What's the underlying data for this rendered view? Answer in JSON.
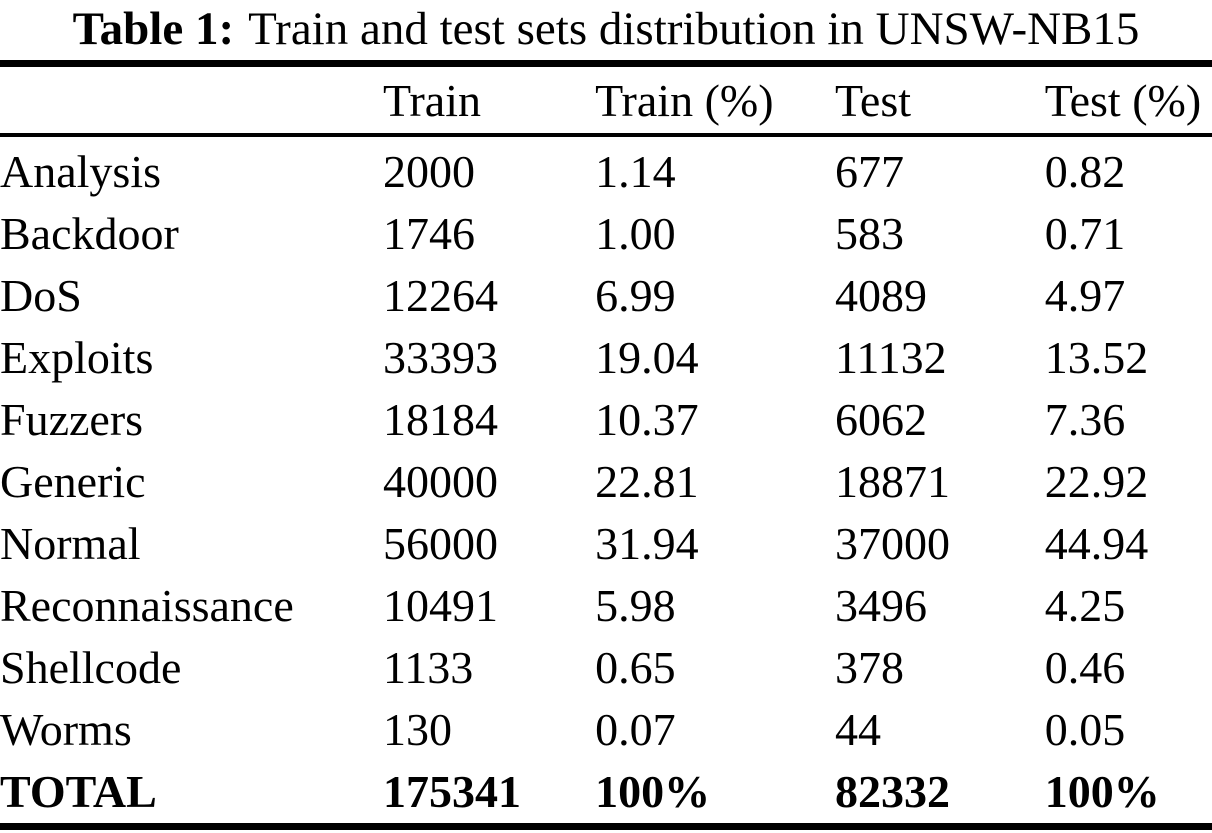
{
  "caption": {
    "label": "Table 1:",
    "text": "Train and test sets distribution in UNSW-NB15"
  },
  "table": {
    "columns": {
      "category": "",
      "train": "Train",
      "train_pct": "Train (%)",
      "test": "Test",
      "test_pct": "Test (%)"
    },
    "rows": [
      {
        "category": "Analysis",
        "train": "2000",
        "train_pct": "1.14",
        "test": "677",
        "test_pct": "0.82"
      },
      {
        "category": "Backdoor",
        "train": "1746",
        "train_pct": "1.00",
        "test": "583",
        "test_pct": "0.71"
      },
      {
        "category": "DoS",
        "train": "12264",
        "train_pct": "6.99",
        "test": "4089",
        "test_pct": "4.97"
      },
      {
        "category": "Exploits",
        "train": "33393",
        "train_pct": "19.04",
        "test": "11132",
        "test_pct": "13.52"
      },
      {
        "category": "Fuzzers",
        "train": "18184",
        "train_pct": "10.37",
        "test": "6062",
        "test_pct": "7.36"
      },
      {
        "category": "Generic",
        "train": "40000",
        "train_pct": "22.81",
        "test": "18871",
        "test_pct": "22.92"
      },
      {
        "category": "Normal",
        "train": "56000",
        "train_pct": "31.94",
        "test": "37000",
        "test_pct": "44.94"
      },
      {
        "category": "Reconnaissance",
        "train": "10491",
        "train_pct": "5.98",
        "test": "3496",
        "test_pct": "4.25"
      },
      {
        "category": "Shellcode",
        "train": "1133",
        "train_pct": "0.65",
        "test": "378",
        "test_pct": "0.46"
      },
      {
        "category": "Worms",
        "train": "130",
        "train_pct": "0.07",
        "test": "44",
        "test_pct": "0.05"
      }
    ],
    "total_row": {
      "category": "TOTAL",
      "train": "175341",
      "train_pct": "100%",
      "test": "82332",
      "test_pct": "100%"
    }
  },
  "colors": {
    "text": "#000000",
    "background": "#ffffff",
    "rule": "#000000"
  }
}
